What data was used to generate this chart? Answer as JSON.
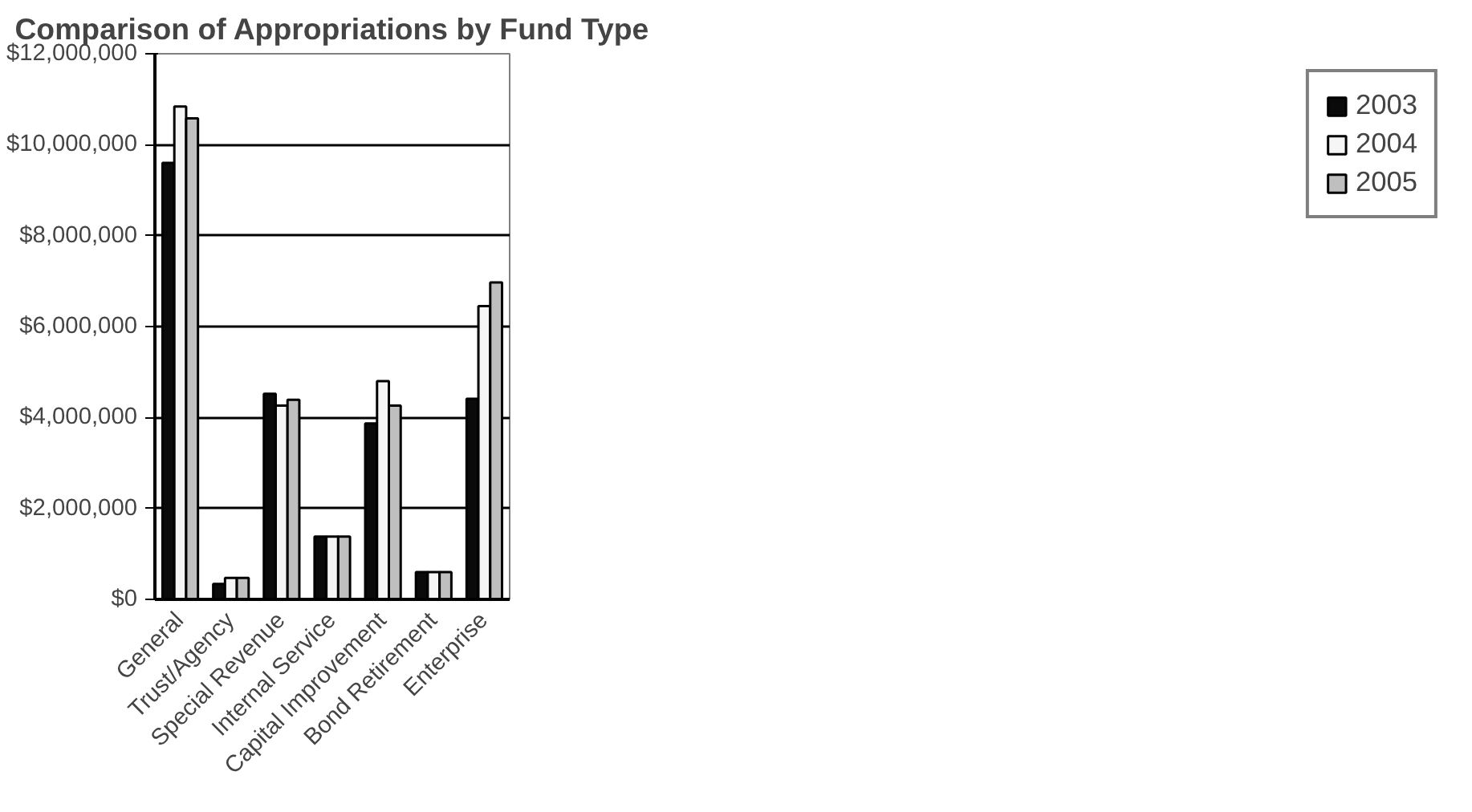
{
  "chart_data": {
    "type": "bar",
    "title": "Comparison of Appropriations by Fund Type",
    "categories": [
      "General",
      "Trust/Agency",
      "Special Revenue",
      "Internal Service",
      "Capital Improvement",
      "Bond Retirement",
      "Enterprise"
    ],
    "series": [
      {
        "name": "2003",
        "color": "#0a0a0a",
        "values": [
          9600000,
          340000,
          4520000,
          1380000,
          3870000,
          600000,
          4410000
        ]
      },
      {
        "name": "2004",
        "color": "#f5f5f5",
        "values": [
          10840000,
          470000,
          4260000,
          1380000,
          4800000,
          600000,
          6450000
        ]
      },
      {
        "name": "2005",
        "color": "#bfbfbf",
        "values": [
          10580000,
          470000,
          4390000,
          1380000,
          4260000,
          600000,
          6970000
        ]
      }
    ],
    "ylim": [
      0,
      12000000
    ],
    "yticks": [
      {
        "value": 0,
        "label": "$0"
      },
      {
        "value": 2000000,
        "label": "$2,000,000"
      },
      {
        "value": 4000000,
        "label": "$4,000,000"
      },
      {
        "value": 6000000,
        "label": "$6,000,000"
      },
      {
        "value": 8000000,
        "label": "$8,000,000"
      },
      {
        "value": 10000000,
        "label": "$10,000,000"
      },
      {
        "value": 12000000,
        "label": "$12,000,000"
      }
    ],
    "grid": "y",
    "legend": "right"
  }
}
